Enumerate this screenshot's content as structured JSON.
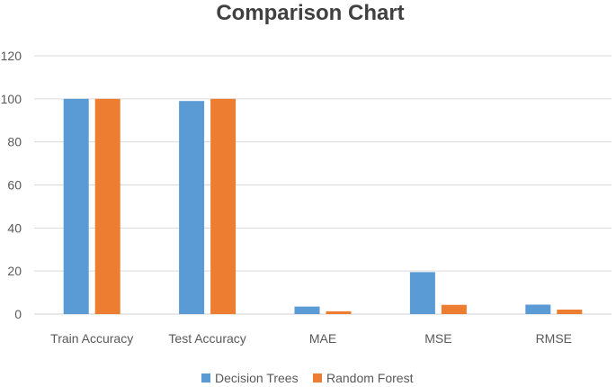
{
  "chart_data": {
    "type": "bar",
    "title": "Comparison Chart",
    "xlabel": "",
    "ylabel": "",
    "categories": [
      "Train Accuracy",
      "Test Accuracy",
      "MAE",
      "MSE",
      "RMSE"
    ],
    "series": [
      {
        "name": "Decision Trees",
        "color": "#5B9BD5",
        "values": [
          100,
          99,
          3.5,
          19.5,
          4.4
        ]
      },
      {
        "name": "Random Forest",
        "color": "#ED7D31",
        "values": [
          100,
          100,
          1.3,
          4.3,
          2.1
        ]
      }
    ],
    "ylim": [
      0,
      120
    ],
    "yticks": [
      "0",
      "20",
      "40",
      "60",
      "80",
      "100",
      "120"
    ],
    "grid": true,
    "legend": "bottom-center"
  }
}
